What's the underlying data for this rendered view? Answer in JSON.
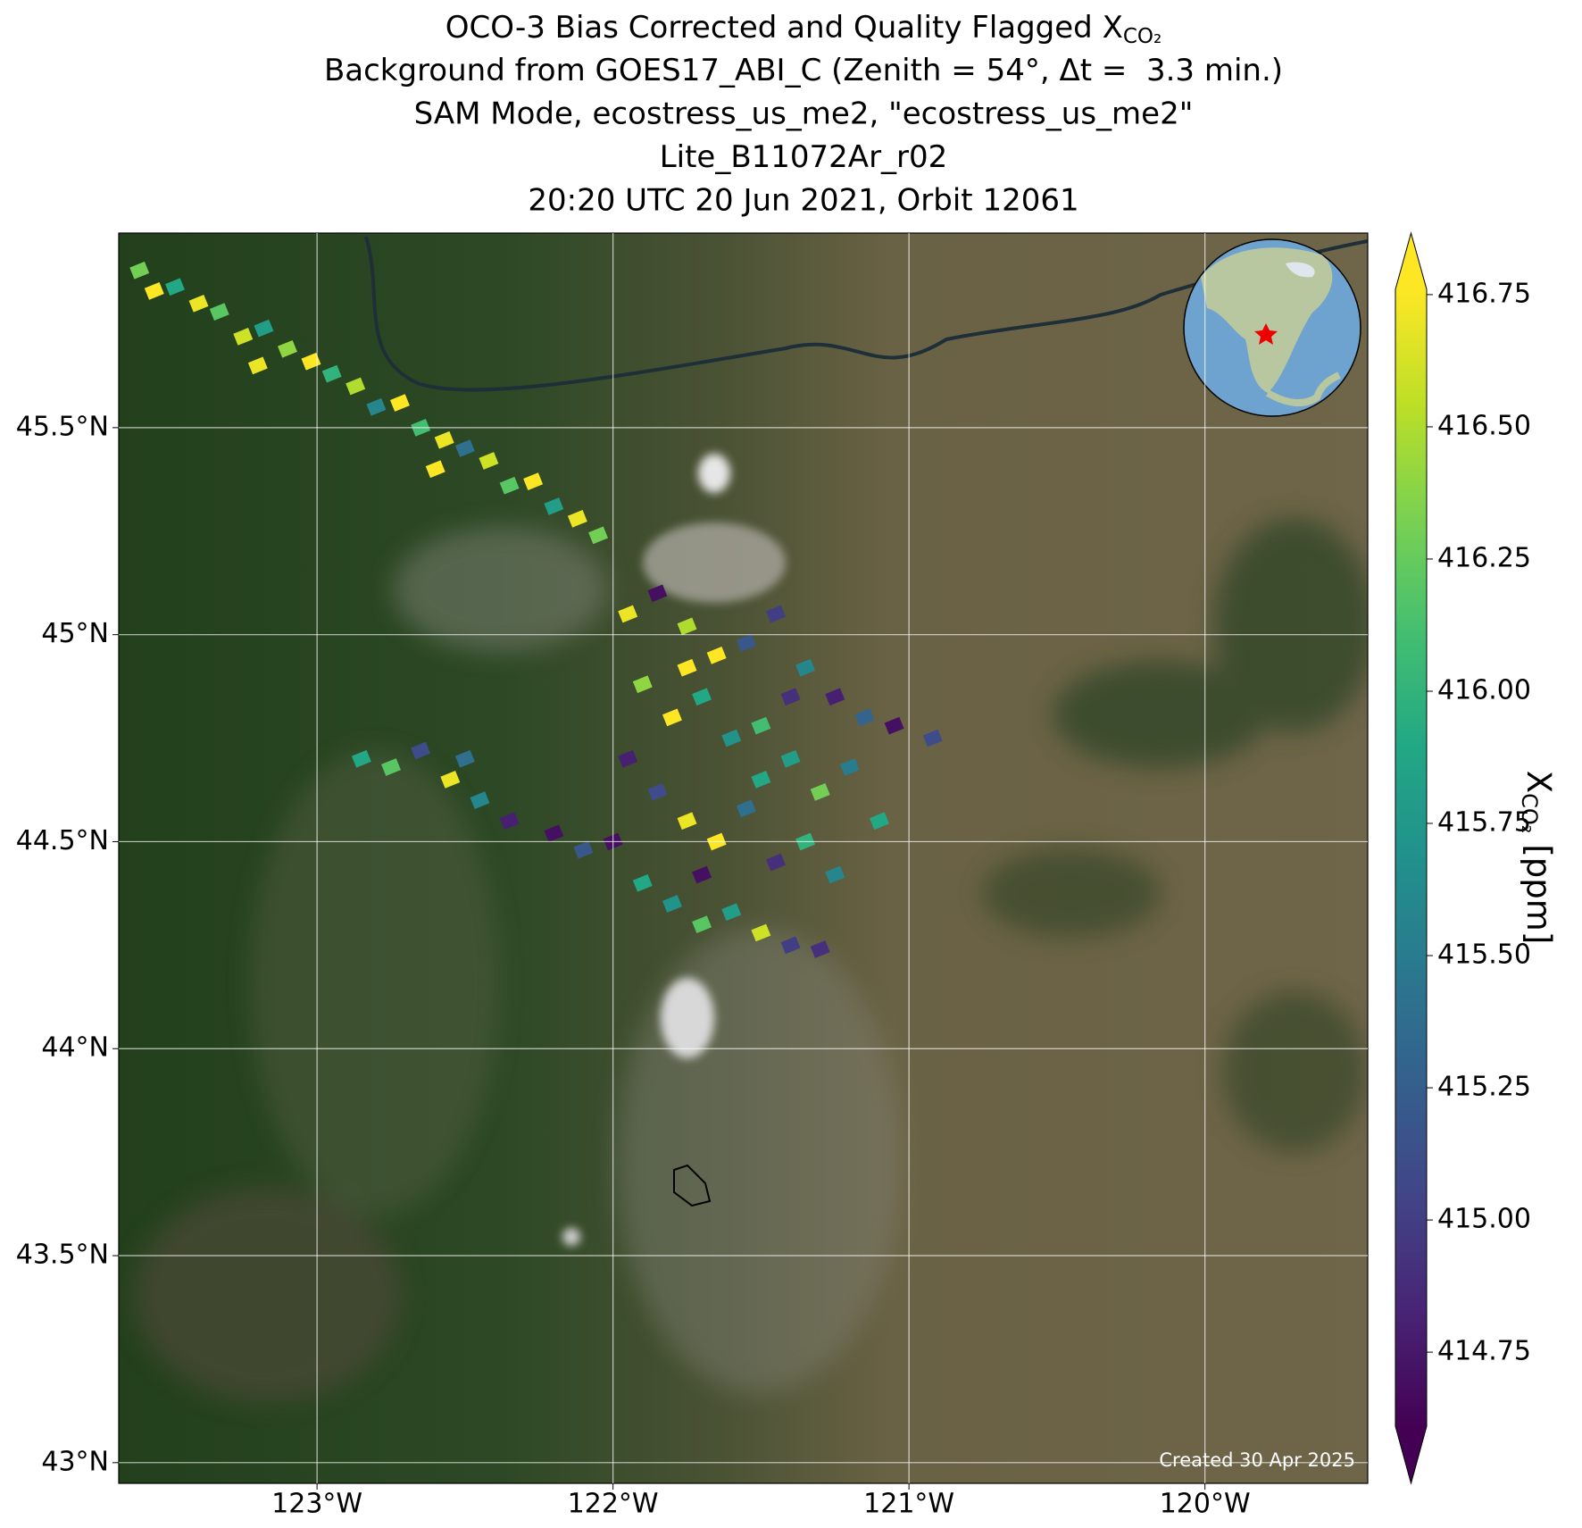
{
  "chart_data": {
    "type": "scatter",
    "title": [
      "OCO-3 Bias Corrected and Quality Flagged X",
      "Background from GOES17_ABI_C (Zenith = 54°, Δt =  3.3 min.)",
      "SAM Mode, ecostress_us_me2, \"ecostress_us_me2\"",
      "Lite_B11072Ar_r02",
      "20:20 UTC 20 Jun 2021, Orbit 12061"
    ],
    "title_subscript": "CO₂",
    "xlim": [
      -123.67,
      -119.45
    ],
    "ylim": [
      42.95,
      45.97
    ],
    "xticks": [
      {
        "value": -123,
        "label": "123°W"
      },
      {
        "value": -122,
        "label": "122°W"
      },
      {
        "value": -121,
        "label": "121°W"
      },
      {
        "value": -120,
        "label": "120°W"
      }
    ],
    "yticks": [
      {
        "value": 43,
        "label": "43°N"
      },
      {
        "value": 43.5,
        "label": "43.5°N"
      },
      {
        "value": 44,
        "label": "44°N"
      },
      {
        "value": 44.5,
        "label": "44.5°N"
      },
      {
        "value": 45,
        "label": "45°N"
      },
      {
        "value": 45.5,
        "label": "45.5°N"
      }
    ],
    "grid": true,
    "lon": [
      -123.6,
      -123.55,
      -123.48,
      -123.4,
      -123.33,
      -123.25,
      -123.18,
      -123.1,
      -123.02,
      -122.95,
      -122.87,
      -122.8,
      -122.72,
      -122.65,
      -122.57,
      -122.5,
      -122.42,
      -122.35,
      -122.27,
      -122.2,
      -122.12,
      -122.05,
      -123.2,
      -122.6,
      -121.95,
      -121.85,
      -121.75,
      -121.65,
      -121.55,
      -121.45,
      -121.35,
      -121.25,
      -121.15,
      -121.05,
      -120.92,
      -121.9,
      -121.8,
      -121.7,
      -121.6,
      -121.5,
      -121.4,
      -121.3,
      -121.2,
      -121.1,
      -121.95,
      -121.85,
      -121.75,
      -121.65,
      -121.55,
      -121.45,
      -121.35,
      -121.25,
      -122.0,
      -121.9,
      -121.8,
      -121.7,
      -121.6,
      -121.5,
      -121.4,
      -121.3,
      -121.7,
      -121.5,
      -121.4,
      -121.75,
      -122.85,
      -122.75,
      -122.65,
      -122.55,
      -122.45,
      -122.35,
      -122.2,
      -122.1,
      -122.5
    ],
    "lat": [
      45.88,
      45.83,
      45.84,
      45.8,
      45.78,
      45.72,
      45.74,
      45.69,
      45.66,
      45.63,
      45.6,
      45.55,
      45.56,
      45.5,
      45.47,
      45.45,
      45.42,
      45.36,
      45.37,
      45.31,
      45.28,
      45.24,
      45.65,
      45.4,
      45.05,
      45.1,
      45.02,
      44.95,
      44.98,
      45.05,
      44.92,
      44.85,
      44.8,
      44.78,
      44.75,
      44.88,
      44.8,
      44.85,
      44.75,
      44.78,
      44.7,
      44.62,
      44.68,
      44.55,
      44.7,
      44.62,
      44.55,
      44.5,
      44.58,
      44.45,
      44.5,
      44.42,
      44.5,
      44.4,
      44.35,
      44.3,
      44.33,
      44.28,
      44.25,
      44.24,
      44.42,
      44.65,
      44.85,
      44.92,
      44.7,
      44.68,
      44.72,
      44.65,
      44.6,
      44.55,
      44.52,
      44.48,
      44.7
    ],
    "values": [
      416.3,
      416.8,
      415.9,
      416.7,
      416.2,
      416.6,
      415.8,
      416.4,
      416.8,
      416.0,
      416.5,
      415.6,
      416.8,
      416.1,
      416.7,
      415.4,
      416.6,
      416.2,
      416.8,
      415.8,
      416.7,
      416.3,
      416.7,
      416.8,
      416.7,
      414.7,
      416.5,
      416.8,
      415.2,
      415.0,
      415.6,
      414.8,
      415.3,
      414.7,
      415.1,
      416.4,
      416.8,
      415.9,
      415.7,
      416.1,
      415.8,
      416.3,
      415.5,
      415.9,
      414.8,
      415.1,
      416.7,
      416.8,
      415.4,
      414.9,
      416.0,
      415.6,
      414.7,
      415.9,
      415.7,
      416.2,
      415.8,
      416.6,
      415.0,
      414.9,
      414.7,
      415.9,
      414.9,
      416.8,
      415.9,
      416.2,
      415.1,
      416.7,
      415.6,
      414.8,
      414.7,
      415.2,
      415.4
    ],
    "colormap": "viridis",
    "clim": [
      414.61,
      416.76
    ],
    "colorbar_extend": "both",
    "cticks": [
      414.75,
      {
        "value": 415,
        "label": "415.00"
      },
      415.25,
      {
        "value": 415.5,
        "label": "415.50"
      },
      415.75,
      {
        "value": 416,
        "label": "416.00"
      },
      416.25,
      {
        "value": 416.5,
        "label": "416.50"
      },
      416.75
    ],
    "colorbar_label": "X",
    "colorbar_label_subscript": "CO₂",
    "colorbar_unit": "[ppm]",
    "footnote": "Created 30 Apr 2025"
  }
}
